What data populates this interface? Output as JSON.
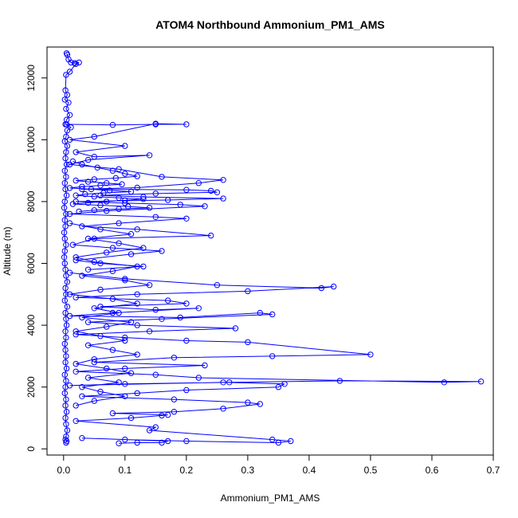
{
  "chart_data": {
    "type": "line",
    "title": "ATOM4 Northbound Ammonium_PM1_AMS",
    "xlabel": "Ammonium_PM1_AMS",
    "ylabel": "Altitude (m)",
    "xlim": [
      -0.027,
      0.7
    ],
    "ylim": [
      -200,
      13000
    ],
    "xticks": [
      {
        "value": 0.0,
        "label": "0.0"
      },
      {
        "value": 0.1,
        "label": "0.1"
      },
      {
        "value": 0.2,
        "label": "0.2"
      },
      {
        "value": 0.3,
        "label": "0.3"
      },
      {
        "value": 0.4,
        "label": "0.4"
      },
      {
        "value": 0.5,
        "label": "0.5"
      },
      {
        "value": 0.6,
        "label": "0.6"
      },
      {
        "value": 0.7,
        "label": "0.7"
      }
    ],
    "yticks": [
      {
        "value": 0,
        "label": "0"
      },
      {
        "value": 2000,
        "label": "2000"
      },
      {
        "value": 4000,
        "label": "4000"
      },
      {
        "value": 6000,
        "label": "6000"
      },
      {
        "value": 8000,
        "label": "8000"
      },
      {
        "value": 10000,
        "label": "10000"
      },
      {
        "value": 12000,
        "label": "12000"
      }
    ],
    "marker": "open-circle",
    "color": "#0000ff",
    "grid": false,
    "series": [
      {
        "x": [
          0.005,
          0.006,
          0.008,
          0.012,
          0.018,
          0.025,
          0.02,
          0.01,
          0.004,
          0.003,
          0.006,
          0.002,
          0.008,
          0.004,
          0.01,
          0.005,
          0.003,
          0.012,
          0.006,
          0.004,
          0.002,
          0.006,
          0.004,
          0.003,
          0.005,
          0.002,
          0.004,
          0.002,
          0.003,
          0.005,
          0.002,
          0.001,
          0.004,
          0.002,
          0.003,
          0.001,
          0.002,
          0.004,
          0.002,
          0.001,
          0.002,
          0.003,
          0.004,
          0.006,
          0.003,
          0.004,
          0.002,
          0.006,
          0.003,
          0.004,
          0.005,
          0.003,
          0.004,
          0.002,
          0.003,
          0.004,
          0.003,
          0.005,
          0.002,
          0.004,
          0.003,
          0.002,
          0.004,
          0.003,
          0.005,
          0.003,
          0.004,
          0.006,
          0.004,
          0.003,
          0.005,
          0.004
        ],
        "y": [
          12800,
          12750,
          12600,
          12500,
          12480,
          12500,
          12450,
          12200,
          12100,
          11600,
          11450,
          11300,
          11200,
          11000,
          10800,
          10650,
          10500,
          10400,
          10300,
          10100,
          9950,
          9800,
          9600,
          9400,
          9200,
          9000,
          8800,
          8600,
          8400,
          8200,
          8000,
          7800,
          7600,
          7400,
          7200,
          7000,
          6800,
          6600,
          6400,
          6200,
          6000,
          5800,
          5600,
          5400,
          5200,
          5000,
          4800,
          4600,
          4400,
          4200,
          4000,
          3800,
          3600,
          3400,
          3200,
          3000,
          2800,
          2600,
          2400,
          2200,
          2000,
          1800,
          1600,
          1400,
          1200,
          1000,
          800,
          600,
          400,
          300,
          250,
          200
        ]
      },
      {
        "x": [
          0.005,
          0.08,
          0.15,
          0.2,
          0.15,
          0.05,
          0.01,
          0.1,
          0.02,
          0.05,
          0.14,
          0.04,
          0.01,
          0.09,
          0.16,
          0.26,
          0.22,
          0.12,
          0.03,
          0.2,
          0.24,
          0.25,
          0.15,
          0.06,
          0.13,
          0.26,
          0.17,
          0.02,
          0.1,
          0.19,
          0.23,
          0.07,
          0.01,
          0.15,
          0.2,
          0.09,
          0.03,
          0.12,
          0.24,
          0.05,
          0.015,
          0.08,
          0.16,
          0.11,
          0.02,
          0.06,
          0.13,
          0.04
        ],
        "y": [
          10500,
          10480,
          10500,
          10500,
          10520,
          10100,
          10000,
          9800,
          9600,
          9450,
          9500,
          9350,
          9200,
          9050,
          8800,
          8700,
          8600,
          8450,
          8400,
          8380,
          8350,
          8300,
          8260,
          8200,
          8150,
          8100,
          8050,
          8000,
          7950,
          7900,
          7850,
          7700,
          7600,
          7500,
          7450,
          7300,
          7200,
          7100,
          6900,
          6800,
          6600,
          6500,
          6400,
          6300,
          6100,
          6000,
          5900,
          5800
        ]
      },
      {
        "x": [
          0.01,
          0.1,
          0.25,
          0.42,
          0.44,
          0.3,
          0.12,
          0.02,
          0.17,
          0.2,
          0.06,
          0.15,
          0.22,
          0.08,
          0.01,
          0.19,
          0.32,
          0.34,
          0.16,
          0.04,
          0.12,
          0.28,
          0.14,
          0.02,
          0.1,
          0.2,
          0.3,
          0.5,
          0.34,
          0.18,
          0.05,
          0.23,
          0.1,
          0.02,
          0.15,
          0.22,
          0.62,
          0.68,
          0.45,
          0.27,
          0.1,
          0.01,
          0.26,
          0.36,
          0.35,
          0.2,
          0.12,
          0.03,
          0.18,
          0.3,
          0.32,
          0.26,
          0.18,
          0.08,
          0.17,
          0.16,
          0.11,
          0.02,
          0.15,
          0.14,
          0.34,
          0.37,
          0.35,
          0.2,
          0.1,
          0.03,
          0.17,
          0.16,
          0.12,
          0.09
        ],
        "y": [
          5700,
          5500,
          5300,
          5200,
          5250,
          5100,
          5000,
          4900,
          4800,
          4700,
          4600,
          4500,
          4550,
          4400,
          4300,
          4250,
          4400,
          4350,
          4200,
          4100,
          4000,
          3900,
          3800,
          3700,
          3600,
          3500,
          3450,
          3050,
          3000,
          2950,
          2800,
          2700,
          2600,
          2500,
          2400,
          2300,
          2150,
          2180,
          2200,
          2150,
          2100,
          2050,
          2150,
          2100,
          2000,
          1900,
          1800,
          1700,
          1600,
          1500,
          1450,
          1300,
          1200,
          1150,
          1100,
          1080,
          1000,
          900,
          700,
          600,
          300,
          250,
          200,
          250,
          300,
          350,
          250,
          200,
          200,
          180
        ]
      },
      {
        "x": [
          0.01,
          0.06,
          0.11,
          0.04,
          0.09,
          0.13,
          0.07,
          0.02,
          0.05,
          0.12,
          0.08,
          0.03,
          0.1,
          0.14,
          0.06,
          0.01,
          0.08,
          0.12,
          0.05,
          0.09,
          0.03,
          0.11,
          0.07,
          0.02,
          0.06,
          0.1,
          0.04,
          0.08,
          0.12,
          0.05,
          0.02,
          0.07,
          0.11,
          0.04,
          0.09,
          0.03,
          0.06,
          0.1,
          0.05,
          0.02
        ],
        "y": [
          7300,
          7100,
          6950,
          6800,
          6650,
          6500,
          6350,
          6200,
          6050,
          5900,
          5750,
          5600,
          5450,
          5300,
          5150,
          5000,
          4850,
          4700,
          4550,
          4400,
          4250,
          4100,
          3950,
          3800,
          3650,
          3500,
          3350,
          3200,
          3050,
          2900,
          2750,
          2600,
          2450,
          2300,
          2150,
          2000,
          1850,
          1700,
          1550,
          1400
        ]
      },
      {
        "x": [
          0.015,
          0.03,
          0.055,
          0.08,
          0.1,
          0.12,
          0.085,
          0.05,
          0.02,
          0.04,
          0.07,
          0.095,
          0.06,
          0.03,
          0.01,
          0.045,
          0.075,
          0.11,
          0.065,
          0.035,
          0.02,
          0.05,
          0.09,
          0.13,
          0.1,
          0.07,
          0.04,
          0.015,
          0.06,
          0.105,
          0.14,
          0.09,
          0.05,
          0.025
        ],
        "y": [
          9300,
          9200,
          9100,
          9000,
          8900,
          8820,
          8760,
          8720,
          8680,
          8640,
          8600,
          8560,
          8520,
          8480,
          8440,
          8400,
          8360,
          8320,
          8280,
          8240,
          8200,
          8160,
          8120,
          8080,
          8040,
          8000,
          7960,
          7920,
          7880,
          7840,
          7800,
          7760,
          7720,
          7680
        ]
      }
    ]
  }
}
